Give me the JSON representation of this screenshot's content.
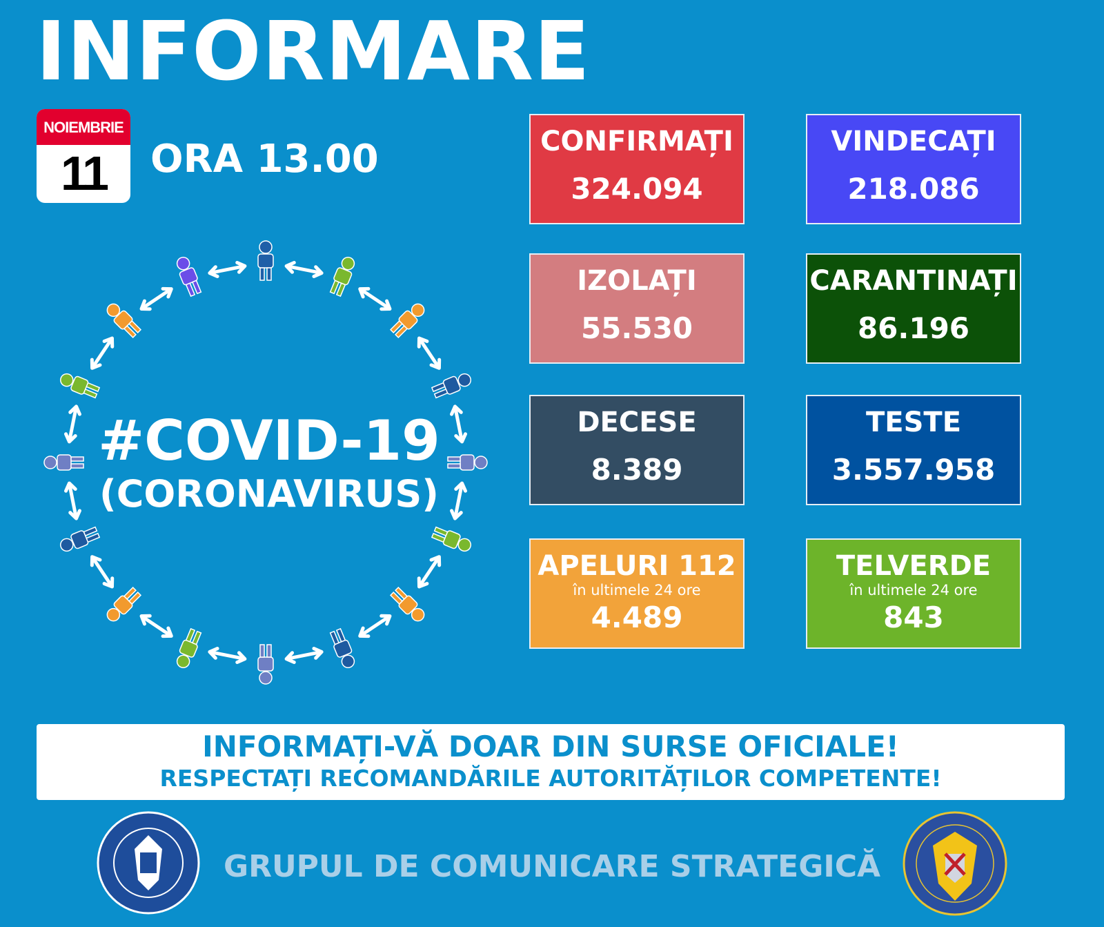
{
  "header": {
    "title": "INFORMARE",
    "month": "NOIEMBRIE",
    "day": "11",
    "time": "ORA 13.00"
  },
  "stats": [
    {
      "label": "CONFIRMAȚI",
      "value": "324.094",
      "color": "#e03a44"
    },
    {
      "label": "VINDECAȚI",
      "value": "218.086",
      "color": "#4848f5"
    },
    {
      "label": "IZOLAȚI",
      "value": "55.530",
      "color": "#d37d80"
    },
    {
      "label": "CARANTINAȚI",
      "value": "86.196",
      "color": "#0c5108"
    },
    {
      "label": "DECESE",
      "value": "8.389",
      "color": "#334d63"
    },
    {
      "label": "TESTE",
      "value": "3.557.958",
      "color": "#0052a0"
    },
    {
      "label": "APELURI 112",
      "sub": "în ultimele 24 ore",
      "value": "4.489",
      "color": "#f2a33a"
    },
    {
      "label": "TELVERDE",
      "sub": "în ultimele 24 ore",
      "value": "843",
      "color": "#6db42a"
    }
  ],
  "covid": {
    "hashtag": "#COVID-19",
    "subtitle": "(CORONAVIRUS)",
    "figure_colors": [
      "#1f5fa8",
      "#7ab82e",
      "#f29a2e",
      "#1e5aa0",
      "#6f7fc4",
      "#7ab82e",
      "#f29a2e",
      "#1e5aa0",
      "#6f7fc4",
      "#7ab82e",
      "#f29a2e",
      "#1e5aa0",
      "#6f7fc4",
      "#7ab82e",
      "#f29a2e",
      "#6b4ee8"
    ]
  },
  "banner": {
    "line1": "INFORMAȚI-VĂ DOAR DIN SURSE OFICIALE!",
    "line2": "RESPECTAȚI RECOMANDĂRILE AUTORITĂȚILOR COMPETENTE!"
  },
  "footer": {
    "text": "GRUPUL DE COMUNICARE STRATEGICĂ",
    "logo_left": "GUVERNUL ROMÂNIEI",
    "logo_right": "DEPARTAMENTUL PENTRU SITUAȚII DE URGENȚĂ M.A.I."
  }
}
